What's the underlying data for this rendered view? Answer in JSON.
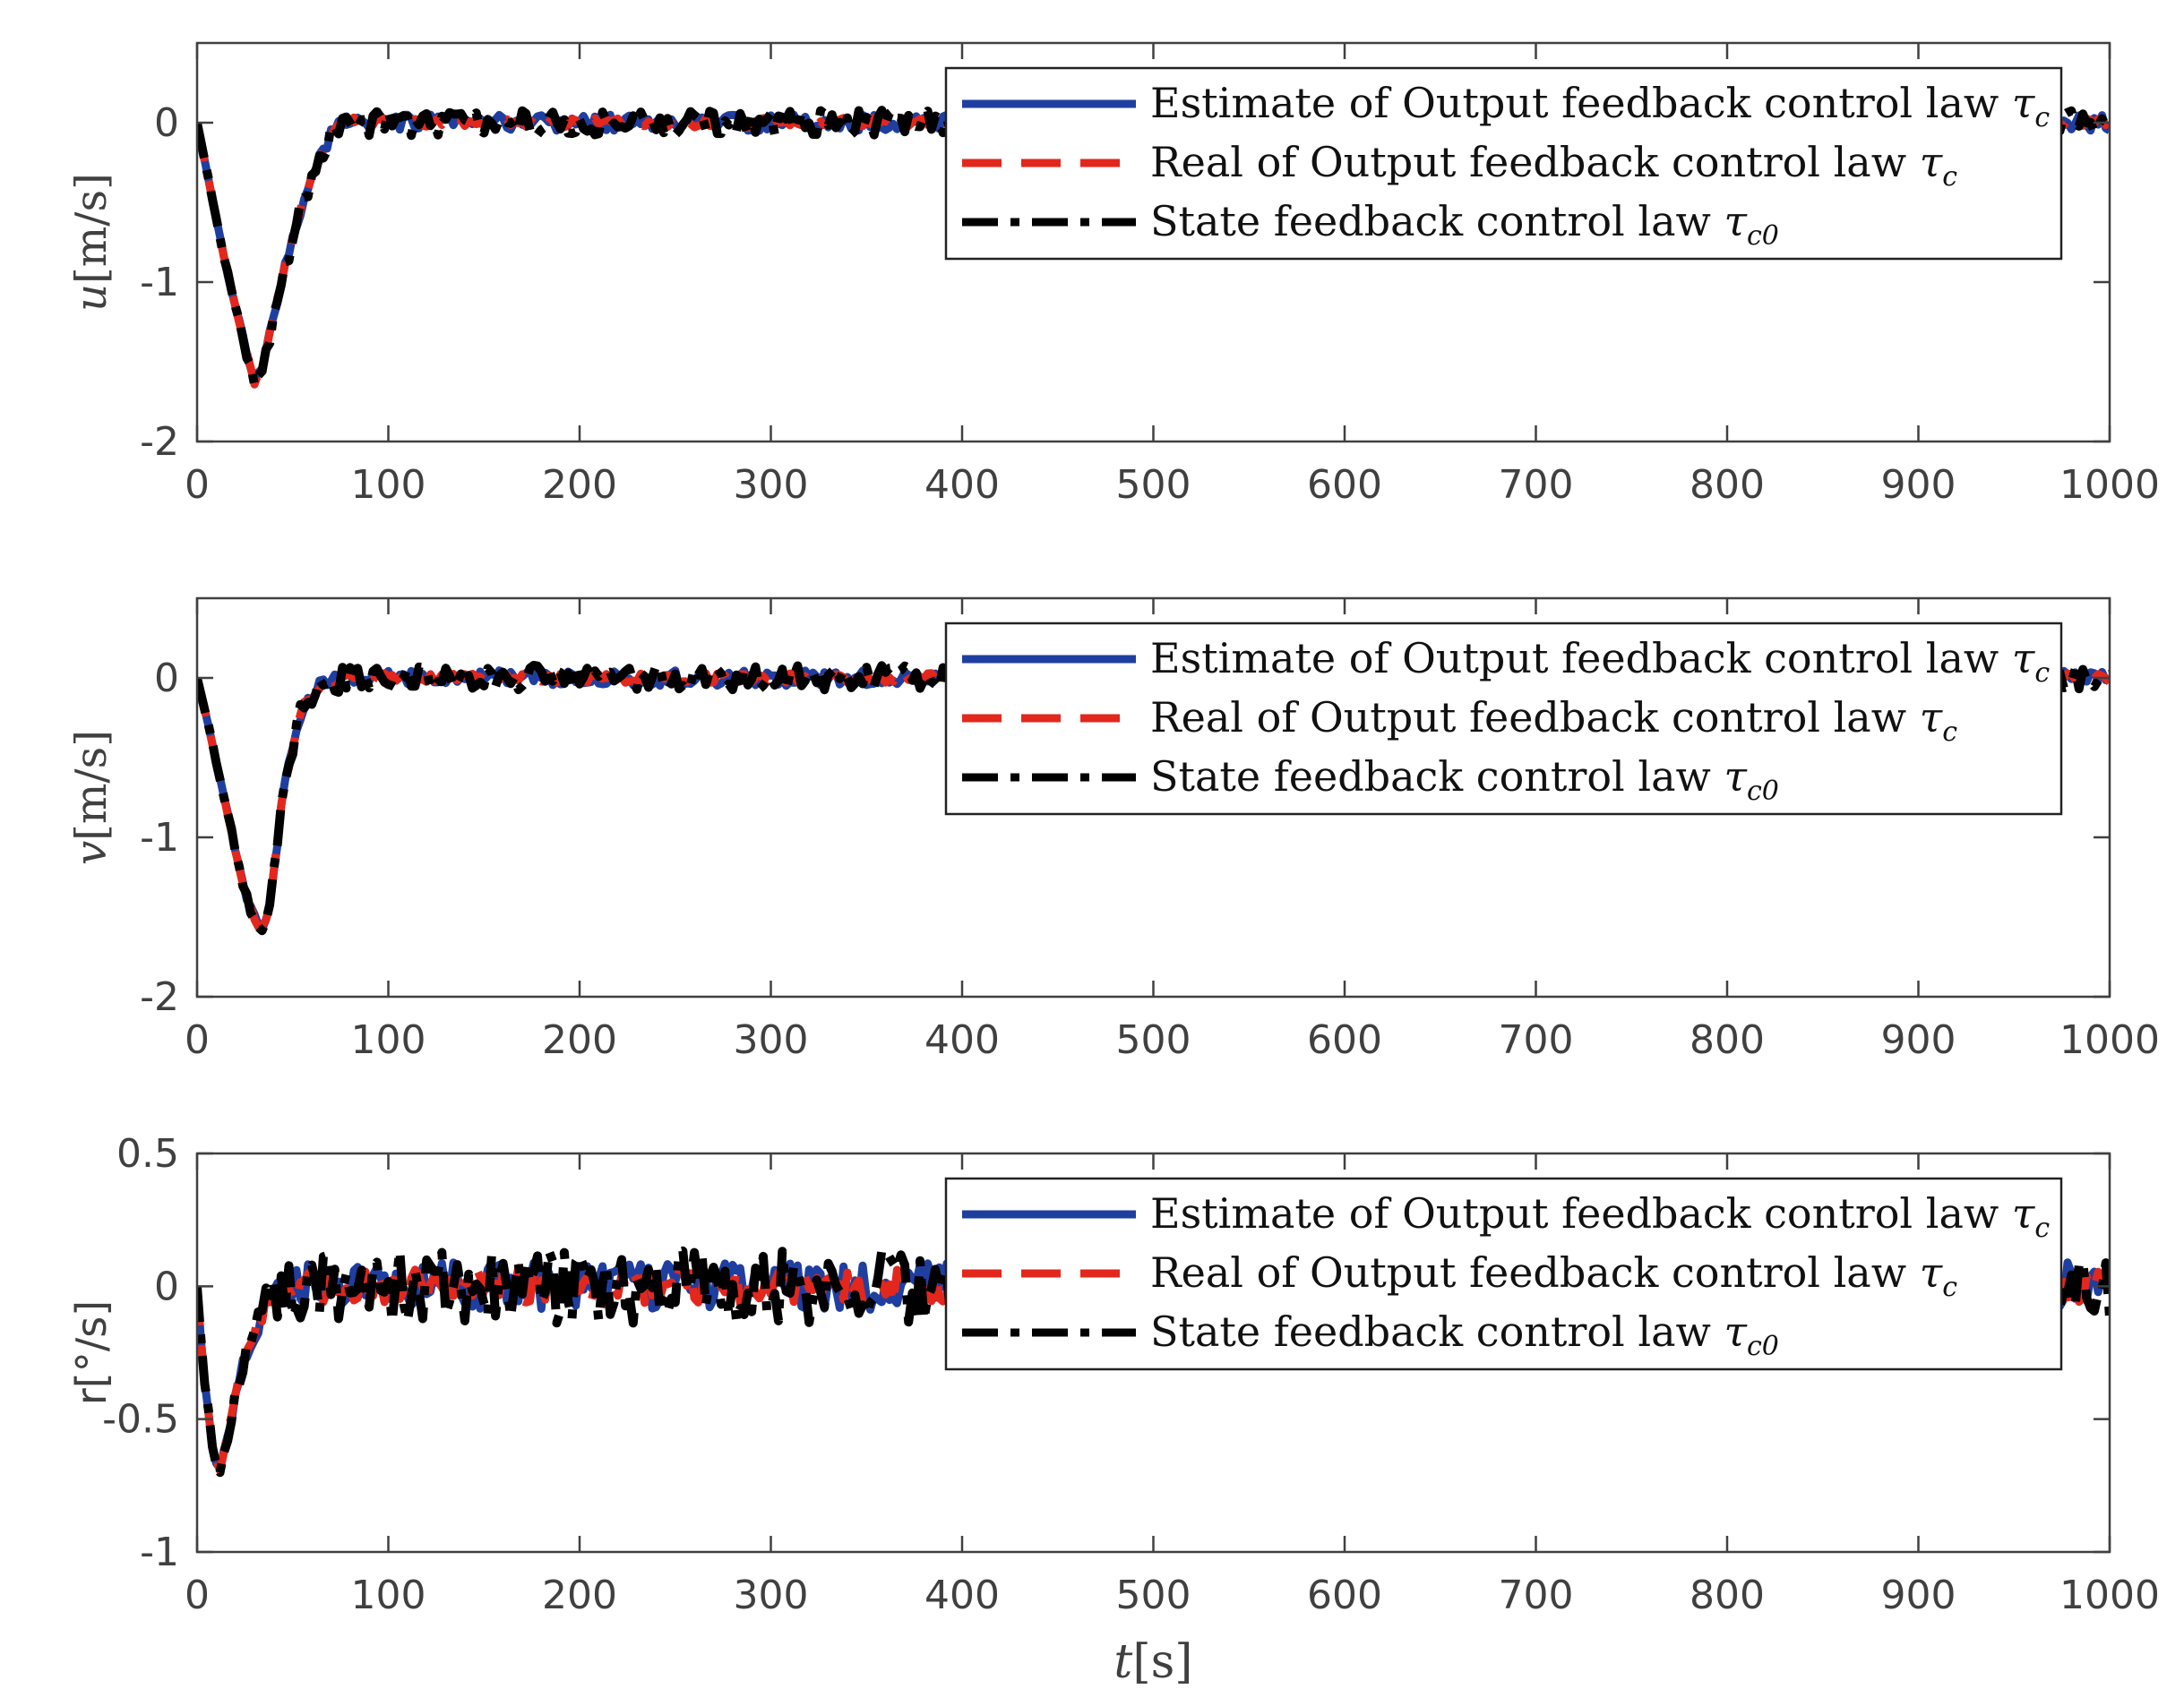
{
  "chart_data": [
    {
      "type": "line",
      "id": "u",
      "ylabel_symbol": "u",
      "ylabel_unit": "[m/s]",
      "xlim": [
        0,
        1000
      ],
      "ylim": [
        -2,
        0.5
      ],
      "yticks": [
        {
          "value": 0,
          "label": "0"
        },
        {
          "value": -1,
          "label": "-1"
        },
        {
          "value": -2,
          "label": "-2"
        }
      ],
      "xticks": [
        "0",
        "100",
        "200",
        "300",
        "400",
        "500",
        "600",
        "700",
        "800",
        "900",
        "1000"
      ],
      "trend": {
        "t": [
          0,
          5,
          15,
          25,
          30,
          35,
          45,
          55,
          65,
          75,
          90,
          1000
        ],
        "y": [
          0,
          -0.3,
          -0.9,
          -1.4,
          -1.63,
          -1.5,
          -0.95,
          -0.5,
          -0.18,
          0.02,
          0,
          0
        ]
      },
      "noise": [
        0.05,
        0.03,
        0.08
      ],
      "legend": {
        "position": "top-right"
      }
    },
    {
      "type": "line",
      "id": "v",
      "ylabel_symbol": "v",
      "ylabel_unit": "[m/s]",
      "xlim": [
        0,
        1000
      ],
      "ylim": [
        -2,
        0.5
      ],
      "yticks": [
        {
          "value": 0,
          "label": "0"
        },
        {
          "value": -1,
          "label": "-1"
        },
        {
          "value": -2,
          "label": "-2"
        }
      ],
      "xticks": [
        "0",
        "100",
        "200",
        "300",
        "400",
        "500",
        "600",
        "700",
        "800",
        "900",
        "1000"
      ],
      "trend": {
        "t": [
          0,
          5,
          15,
          25,
          33,
          38,
          45,
          55,
          65,
          80,
          1000
        ],
        "y": [
          0,
          -0.25,
          -0.8,
          -1.35,
          -1.6,
          -1.45,
          -0.7,
          -0.18,
          -0.05,
          0,
          0
        ]
      },
      "noise": [
        0.05,
        0.03,
        0.08
      ],
      "legend": {
        "position": "top-right"
      }
    },
    {
      "type": "line",
      "id": "r",
      "ylabel_symbol": "",
      "ylabel_unit": "r[°/s]",
      "xlim": [
        0,
        1000
      ],
      "ylim": [
        -1,
        0.5
      ],
      "yticks": [
        {
          "value": 0.5,
          "label": "0.5"
        },
        {
          "value": 0,
          "label": "0"
        },
        {
          "value": -0.5,
          "label": "-0.5"
        },
        {
          "value": -1,
          "label": "-1"
        }
      ],
      "xticks": [
        "0",
        "100",
        "200",
        "300",
        "400",
        "500",
        "600",
        "700",
        "800",
        "900",
        "1000"
      ],
      "xlabel_symbol": "t",
      "xlabel_unit": "[s]",
      "trend": {
        "t": [
          0,
          3,
          8,
          12,
          18,
          25,
          35,
          50,
          1000
        ],
        "y": [
          0,
          -0.3,
          -0.6,
          -0.7,
          -0.5,
          -0.25,
          -0.08,
          0,
          0
        ]
      },
      "noise": [
        0.09,
        0.07,
        0.14
      ],
      "legend": {
        "position": "top-right"
      }
    }
  ],
  "legend_entries": [
    {
      "name": "Estimate of Output feedback control law",
      "symbol": "τ",
      "subscript": "c",
      "color": "#1f3fa0",
      "style": "solid"
    },
    {
      "name": "Real of Output feedback control law",
      "symbol": "τ",
      "subscript": "c",
      "color": "#e3271c",
      "style": "dashed"
    },
    {
      "name": "State feedback control law",
      "symbol": "τ",
      "subscript": "c0",
      "color": "#000000",
      "style": "dashdot"
    }
  ]
}
